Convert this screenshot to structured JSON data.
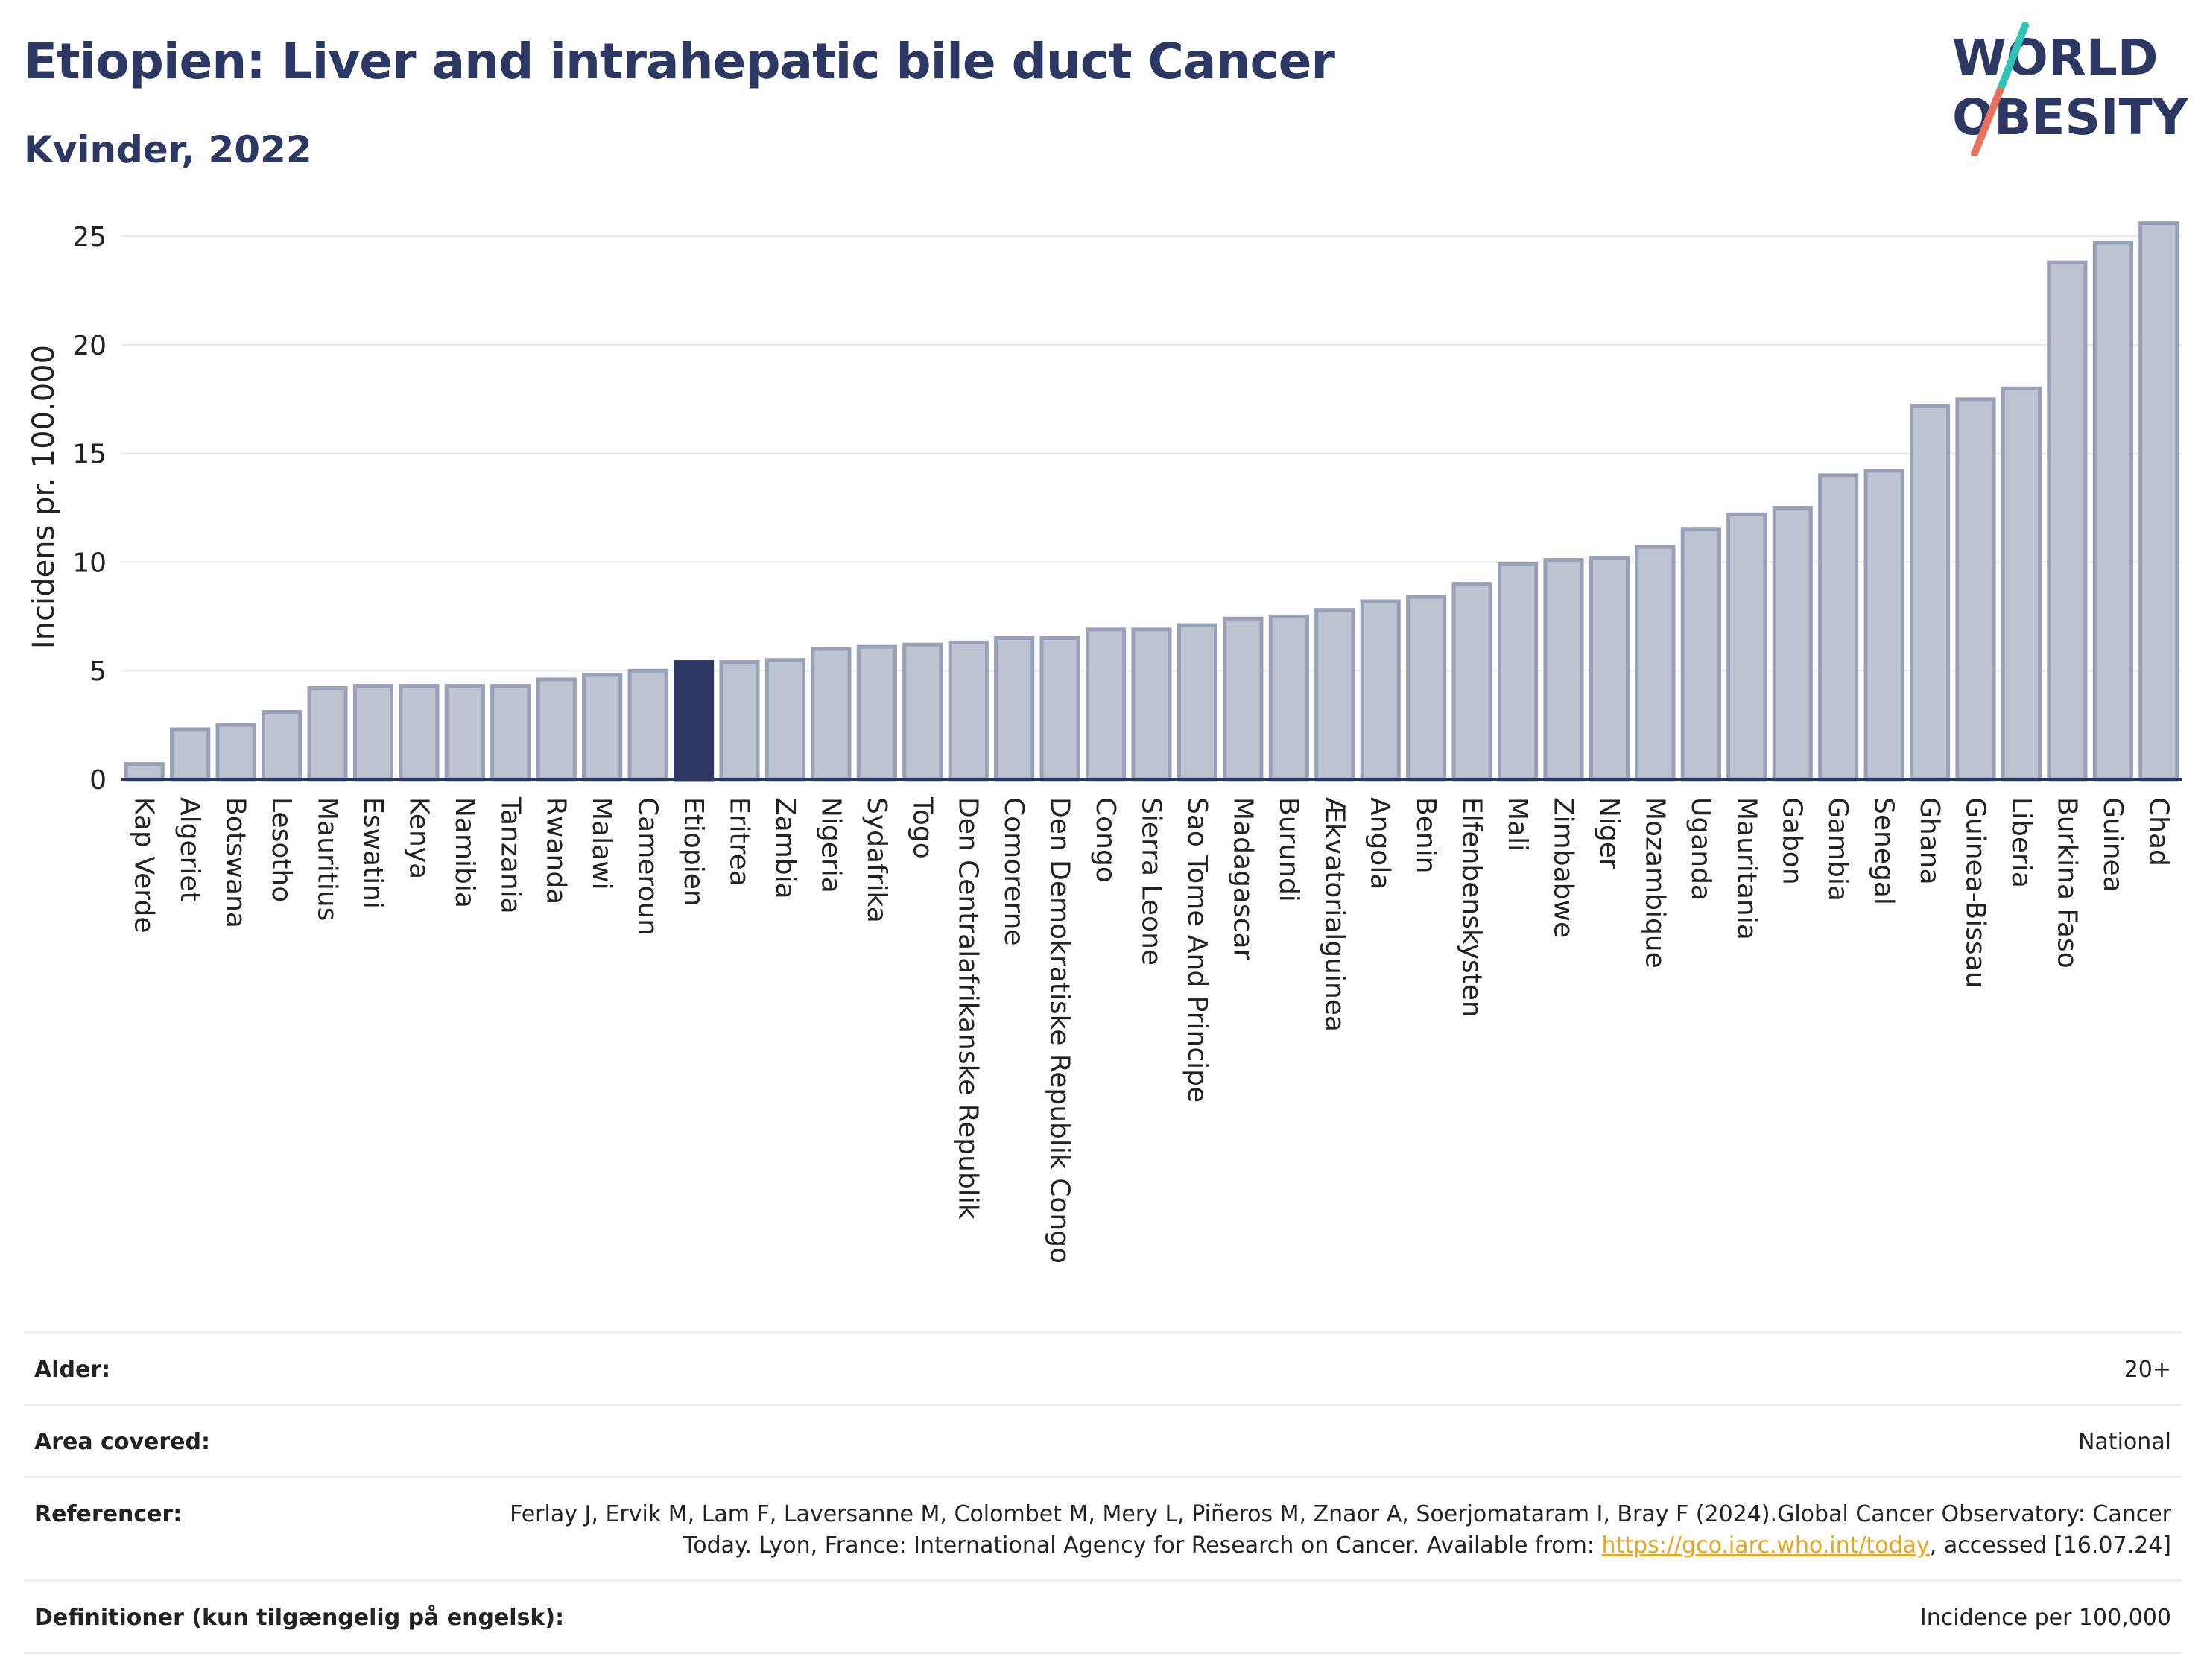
{
  "title": "Etiopien: Liver and intrahepatic bile duct Cancer",
  "subtitle": "Kvinder, 2022",
  "logo": {
    "line1": "WORLD",
    "line2": "OBESITY",
    "accent_colors": [
      "#2ec4b6",
      "#e8705f"
    ]
  },
  "chart_data": {
    "type": "bar",
    "ylabel": "Incidens pr. 100.000",
    "ylim": [
      0,
      26
    ],
    "yticks": [
      0,
      5,
      10,
      15,
      20,
      25
    ],
    "grid": true,
    "highlight": "Etiopien",
    "colors": {
      "bar": "#bec3d1",
      "bar_edge": "#9aa0b8",
      "highlight": "#2c3863",
      "grid": "#e6e8ee"
    },
    "categories": [
      "Kap Verde",
      "Algeriet",
      "Botswana",
      "Lesotho",
      "Mauritius",
      "Eswatini",
      "Kenya",
      "Namibia",
      "Tanzania",
      "Rwanda",
      "Malawi",
      "Cameroun",
      "Etiopien",
      "Eritrea",
      "Zambia",
      "Nigeria",
      "Sydafrika",
      "Togo",
      "Den Centralafrikanske Republik",
      "Comorerne",
      "Den Demokratiske Republik Congo",
      "Congo",
      "Sierra Leone",
      "Sao Tome And Principe",
      "Madagascar",
      "Burundi",
      "Ækvatorialguinea",
      "Angola",
      "Benin",
      "Elfenbenskysten",
      "Mali",
      "Zimbabwe",
      "Niger",
      "Mozambique",
      "Uganda",
      "Mauritania",
      "Gabon",
      "Gambia",
      "Senegal",
      "Ghana",
      "Guinea-Bissau",
      "Liberia",
      "Burkina Faso",
      "Guinea",
      "Chad"
    ],
    "values": [
      0.7,
      2.3,
      2.5,
      3.1,
      4.2,
      4.3,
      4.3,
      4.3,
      4.3,
      4.6,
      4.8,
      5.0,
      5.4,
      5.4,
      5.5,
      6.0,
      6.1,
      6.2,
      6.3,
      6.5,
      6.5,
      6.9,
      6.9,
      7.1,
      7.4,
      7.5,
      7.8,
      8.2,
      8.4,
      9.0,
      9.9,
      10.1,
      10.2,
      10.7,
      11.5,
      12.2,
      12.5,
      14.0,
      14.2,
      17.2,
      17.5,
      18.0,
      23.8,
      24.7,
      25.6
    ]
  },
  "meta": {
    "age_label": "Alder:",
    "age_value": "20+",
    "area_label": "Area covered:",
    "area_value": "National",
    "ref_label": "Referencer:",
    "ref_text_1": "Ferlay J, Ervik M, Lam F, Laversanne M, Colombet M, Mery L, Piñeros M, Znaor A, Soerjomataram I, Bray F (2024).Global Cancer Observatory: Cancer Today. Lyon, France: International Agency for Research on Cancer. Available from: ",
    "ref_link": "https://gco.iarc.who.int/today",
    "ref_text_2": ", accessed [16.07.24]",
    "def_label": "Definitioner (kun tilgængelig på engelsk):",
    "def_value": "Incidence per 100,000"
  }
}
